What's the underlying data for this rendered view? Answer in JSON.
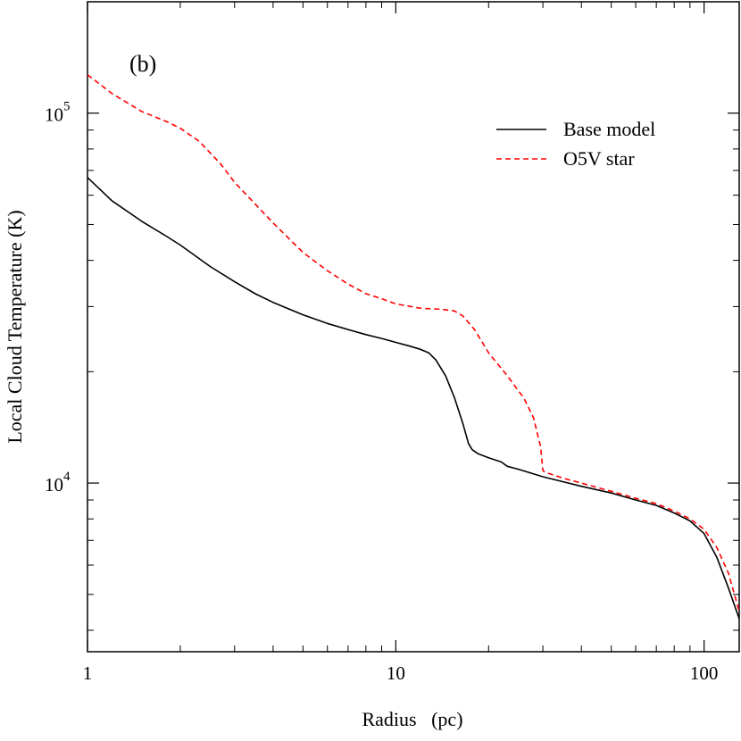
{
  "chart_data": {
    "type": "line",
    "panel_label": "(b)",
    "xlabel": "Radius   (pc)",
    "ylabel": "Local Cloud Temperature  (K)",
    "xscale": "log",
    "yscale": "log",
    "xlim": [
      1,
      130
    ],
    "ylim": [
      3500,
      200000
    ],
    "x_ticks": [
      {
        "value": 1,
        "label": "1"
      },
      {
        "value": 10,
        "label": "10"
      },
      {
        "value": 100,
        "label": "100"
      }
    ],
    "y_ticks": [
      {
        "value": 10000,
        "base": "10",
        "exp": "4"
      },
      {
        "value": 100000,
        "base": "10",
        "exp": "5"
      }
    ],
    "legend_position": "top-right",
    "series": [
      {
        "name": "Base model",
        "color": "#000000",
        "dash": "solid",
        "points": [
          [
            1,
            67000
          ],
          [
            1.2,
            58000
          ],
          [
            1.5,
            51000
          ],
          [
            1.8,
            46500
          ],
          [
            2.0,
            44000
          ],
          [
            2.5,
            38500
          ],
          [
            3.0,
            35000
          ],
          [
            3.5,
            32500
          ],
          [
            4.0,
            30800
          ],
          [
            5.0,
            28500
          ],
          [
            6.0,
            27000
          ],
          [
            7.0,
            26000
          ],
          [
            8.0,
            25200
          ],
          [
            9.0,
            24600
          ],
          [
            10.0,
            24000
          ],
          [
            11.0,
            23500
          ],
          [
            12.0,
            23000
          ],
          [
            12.8,
            22500
          ],
          [
            13.5,
            21500
          ],
          [
            14.5,
            19500
          ],
          [
            15.5,
            17000
          ],
          [
            16.5,
            14500
          ],
          [
            17.2,
            12800
          ],
          [
            17.7,
            12300
          ],
          [
            18.5,
            12000
          ],
          [
            20,
            11700
          ],
          [
            22,
            11400
          ],
          [
            23,
            11100
          ],
          [
            25,
            10900
          ],
          [
            30,
            10400
          ],
          [
            40,
            9800
          ],
          [
            50,
            9400
          ],
          [
            60,
            9000
          ],
          [
            70,
            8700
          ],
          [
            80,
            8300
          ],
          [
            90,
            7900
          ],
          [
            100,
            7300
          ],
          [
            110,
            6300
          ],
          [
            120,
            5200
          ],
          [
            130,
            4300
          ]
        ]
      },
      {
        "name": "O5V star",
        "color": "#ff0000",
        "dash": "dashed",
        "points": [
          [
            1,
            127000
          ],
          [
            1.2,
            113000
          ],
          [
            1.5,
            101000
          ],
          [
            1.8,
            95000
          ],
          [
            2.0,
            91000
          ],
          [
            2.3,
            84000
          ],
          [
            2.7,
            73000
          ],
          [
            3.0,
            65000
          ],
          [
            4.0,
            50500
          ],
          [
            5.0,
            42000
          ],
          [
            6.0,
            37500
          ],
          [
            7.0,
            34500
          ],
          [
            8.0,
            32500
          ],
          [
            9.0,
            31500
          ],
          [
            10.0,
            30500
          ],
          [
            12.0,
            29700
          ],
          [
            14.0,
            29500
          ],
          [
            15.5,
            29200
          ],
          [
            16.5,
            28300
          ],
          [
            18.0,
            26000
          ],
          [
            20.0,
            22500
          ],
          [
            23.0,
            19500
          ],
          [
            26.0,
            17000
          ],
          [
            28.0,
            15000
          ],
          [
            29.5,
            12500
          ],
          [
            30.0,
            10800
          ],
          [
            30.5,
            10700
          ],
          [
            35,
            10300
          ],
          [
            40,
            10000
          ],
          [
            50,
            9500
          ],
          [
            60,
            9100
          ],
          [
            70,
            8800
          ],
          [
            80,
            8400
          ],
          [
            90,
            8000
          ],
          [
            100,
            7500
          ],
          [
            110,
            6700
          ],
          [
            120,
            5700
          ],
          [
            130,
            4500
          ]
        ]
      }
    ]
  }
}
